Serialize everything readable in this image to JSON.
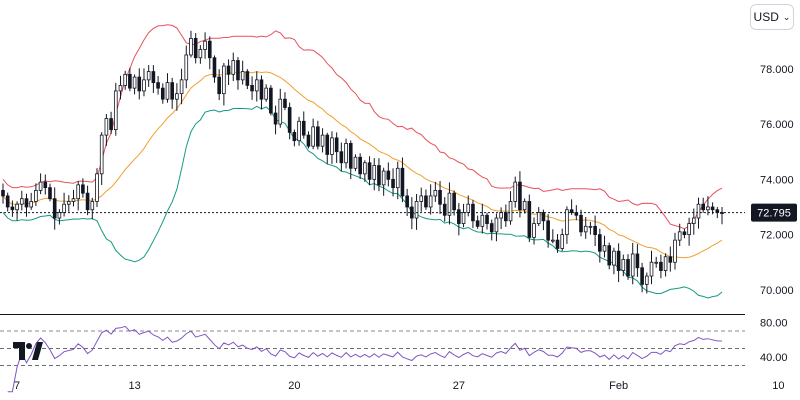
{
  "currency_selector": {
    "label": "USD",
    "icon": "chevron-down-icon"
  },
  "logo": {
    "name": "tradingview-logo-icon"
  },
  "colors": {
    "up": "#131722",
    "down": "#131722",
    "up_fill": "#ffffff",
    "bb_upper": "#e8505b",
    "bb_basis": "#f0a030",
    "bb_lower": "#159a82",
    "rsi": "#7e57c2",
    "price_line": "#131722"
  },
  "chart_data": [
    {
      "type": "candlestick",
      "overlays": [
        "bollinger-upper",
        "bollinger-basis",
        "bollinger-lower"
      ],
      "x_tick_labels": [
        "7",
        "13",
        "20",
        "27",
        "Feb",
        "10"
      ],
      "y_tick_labels": [
        "78.000",
        "76.000",
        "74.000",
        "72.000",
        "70.000"
      ],
      "y_ticks": [
        78,
        76,
        74,
        72,
        70
      ],
      "ylim": [
        69.2,
        80.2
      ],
      "last_price": 72.795,
      "last_price_label": "72.795",
      "closes": [
        73.4,
        73.0,
        72.9,
        73.1,
        73.3,
        73.0,
        73.2,
        73.6,
        73.9,
        73.7,
        73.3,
        72.6,
        72.8,
        73.1,
        73.2,
        73.3,
        73.8,
        73.5,
        72.9,
        73.2,
        74.2,
        75.6,
        76.2,
        75.8,
        77.2,
        77.4,
        77.8,
        77.3,
        77.7,
        77.2,
        77.6,
        77.9,
        77.5,
        77.3,
        76.9,
        77.5,
        76.9,
        77.1,
        77.6,
        78.5,
        79.1,
        78.4,
        78.7,
        79.0,
        78.4,
        77.7,
        77.1,
        78.1,
        77.8,
        78.3,
        77.6,
        77.9,
        77.4,
        77.2,
        77.6,
        76.9,
        77.3,
        76.4,
        76.0,
        76.9,
        76.6,
        75.7,
        75.4,
        76.1,
        75.6,
        75.2,
        75.9,
        75.2,
        75.6,
        74.9,
        75.5,
        75.0,
        74.6,
        75.3,
        74.4,
        74.8,
        74.2,
        74.6,
        74.0,
        74.5,
        73.8,
        74.3,
        74.0,
        73.7,
        74.4,
        73.4,
        73.0,
        72.6,
        73.2,
        73.4,
        73.0,
        73.4,
        73.6,
        73.1,
        72.7,
        73.5,
        72.9,
        72.4,
        72.8,
        73.1,
        72.5,
        72.3,
        72.7,
        72.4,
        72.1,
        72.6,
        72.8,
        72.5,
        73.2,
        73.9,
        72.9,
        73.2,
        71.9,
        72.4,
        72.8,
        72.5,
        71.8,
        71.8,
        71.5,
        72.0,
        72.9,
        72.8,
        72.7,
        72.1,
        72.3,
        72.3,
        72.0,
        71.4,
        71.6,
        70.9,
        71.4,
        70.7,
        71.1,
        70.5,
        71.3,
        70.8,
        70.2,
        70.5,
        71.0,
        71.0,
        70.7,
        71.2,
        71.0,
        71.8,
        72.1,
        72.0,
        72.4,
        72.6,
        73.1,
        72.9,
        73.0,
        72.9,
        72.8,
        72.795
      ],
      "rsi": {
        "y_tick_labels": [
          "80.00",
          "40.00"
        ],
        "ylim": [
          25,
          85
        ],
        "bands": [
          70,
          50,
          30
        ]
      }
    }
  ]
}
